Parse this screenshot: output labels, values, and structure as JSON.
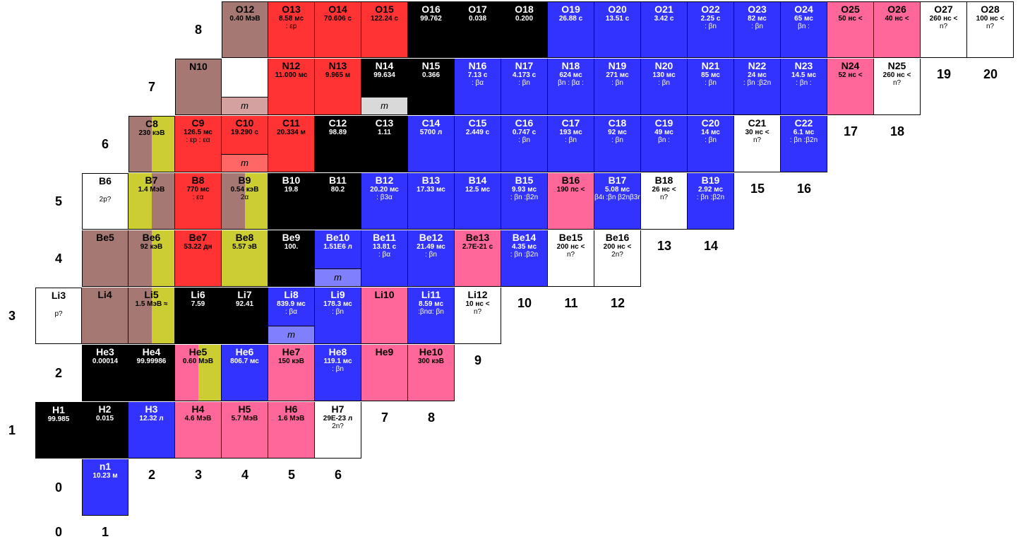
{
  "colors": {
    "stable": "#000000",
    "beta_minus": "#3333ff",
    "beta_plus": "#ff3333",
    "alpha": "#cccc33",
    "proton": "#a67873",
    "unbound": "#ff6699",
    "unknown": "#ffffff",
    "isomer_blue": "#8080ff",
    "isomer_red": "#ff6666",
    "isomer_pink": "#d4a0a0",
    "isomer_gray": "#d9d9d9"
  },
  "z_labels": [
    {
      "text": "0",
      "z": 0
    },
    {
      "text": "1",
      "z": 1
    },
    {
      "text": "2",
      "z": 2
    },
    {
      "text": "3",
      "z": 3
    },
    {
      "text": "4",
      "z": 4
    },
    {
      "text": "5",
      "z": 5
    },
    {
      "text": "6",
      "z": 6
    },
    {
      "text": "7",
      "z": 7
    },
    {
      "text": "8",
      "z": 8
    }
  ],
  "n_labels": [
    {
      "text": "0",
      "n": 0,
      "z": -1
    },
    {
      "text": "1",
      "n": 1,
      "z": -1
    },
    {
      "text": "2",
      "n": 2,
      "z": 0
    },
    {
      "text": "3",
      "n": 3,
      "z": 0
    },
    {
      "text": "4",
      "n": 4,
      "z": 0
    },
    {
      "text": "5",
      "n": 5,
      "z": 0
    },
    {
      "text": "6",
      "n": 6,
      "z": 0
    },
    {
      "text": "7",
      "n": 7,
      "z": 1
    },
    {
      "text": "8",
      "n": 8,
      "z": 1
    },
    {
      "text": "9",
      "n": 9,
      "z": 2
    },
    {
      "text": "10",
      "n": 10,
      "z": 3
    },
    {
      "text": "11",
      "n": 11,
      "z": 3
    },
    {
      "text": "12",
      "n": 12,
      "z": 3
    },
    {
      "text": "13",
      "n": 13,
      "z": 4
    },
    {
      "text": "14",
      "n": 14,
      "z": 4
    },
    {
      "text": "15",
      "n": 15,
      "z": 5
    },
    {
      "text": "16",
      "n": 16,
      "z": 5
    },
    {
      "text": "17",
      "n": 17,
      "z": 6
    },
    {
      "text": "18",
      "n": 18,
      "z": 6
    },
    {
      "text": "19",
      "n": 19,
      "z": 7
    },
    {
      "text": "20",
      "n": 20,
      "z": 7
    }
  ],
  "nuclides": [
    {
      "z": 0,
      "n": 1,
      "name": "n1",
      "v1": "10.23 м",
      "v2": "",
      "fill": "beta_minus"
    },
    {
      "z": 1,
      "n": 0,
      "name": "H1",
      "v1": "99.985",
      "v2": "",
      "fill": "stable"
    },
    {
      "z": 1,
      "n": 1,
      "name": "H2",
      "v1": "0.015",
      "v2": "",
      "fill": "stable"
    },
    {
      "z": 1,
      "n": 2,
      "name": "H3",
      "v1": "12.32 л",
      "v2": "",
      "fill": "beta_minus"
    },
    {
      "z": 1,
      "n": 3,
      "name": "H4",
      "v1": "4.6 МэВ",
      "v2": "",
      "fill": "unbound"
    },
    {
      "z": 1,
      "n": 4,
      "name": "H5",
      "v1": "5.7 МэВ",
      "v2": "",
      "fill": "unbound"
    },
    {
      "z": 1,
      "n": 5,
      "name": "H6",
      "v1": "1.6 МэВ",
      "v2": "",
      "fill": "unbound"
    },
    {
      "z": 1,
      "n": 6,
      "name": "H7",
      "v1": "29E-23 л",
      "v2": "2n?",
      "fill": "unknown"
    },
    {
      "z": 2,
      "n": 1,
      "name": "He3",
      "v1": "0.00014",
      "v2": "",
      "fill": "stable"
    },
    {
      "z": 2,
      "n": 2,
      "name": "He4",
      "v1": "99.99986",
      "v2": "",
      "fill": "stable"
    },
    {
      "z": 2,
      "n": 3,
      "name": "He5",
      "v1": "0.60 МэВ",
      "v2": "",
      "fill": "unbound",
      "split": "alpha"
    },
    {
      "z": 2,
      "n": 4,
      "name": "He6",
      "v1": "806.7 мс",
      "v2": "",
      "fill": "beta_minus"
    },
    {
      "z": 2,
      "n": 5,
      "name": "He7",
      "v1": "150 кэВ",
      "v2": "",
      "fill": "unbound"
    },
    {
      "z": 2,
      "n": 6,
      "name": "He8",
      "v1": "119.1 мс",
      "v2": ":   βn",
      "fill": "beta_minus"
    },
    {
      "z": 2,
      "n": 7,
      "name": "He9",
      "v1": "",
      "v2": "",
      "fill": "unbound"
    },
    {
      "z": 2,
      "n": 8,
      "name": "He10",
      "v1": "300 кэВ",
      "v2": "",
      "fill": "unbound"
    },
    {
      "z": 3,
      "n": 0,
      "name": "Li3",
      "v1": "",
      "v2": "p?",
      "fill": "unknown"
    },
    {
      "z": 3,
      "n": 1,
      "name": "Li4",
      "v1": "",
      "v2": "",
      "fill": "proton"
    },
    {
      "z": 3,
      "n": 2,
      "name": "Li5",
      "v1": "1.5 МэВ ≈",
      "v2": "",
      "fill": "proton",
      "split": "alpha"
    },
    {
      "z": 3,
      "n": 3,
      "name": "Li6",
      "v1": "7.59",
      "v2": "",
      "fill": "stable"
    },
    {
      "z": 3,
      "n": 4,
      "name": "Li7",
      "v1": "92.41",
      "v2": "",
      "fill": "stable"
    },
    {
      "z": 3,
      "n": 5,
      "name": "Li8",
      "v1": "839.9 мс",
      "v2": ":   βα",
      "fill": "beta_minus",
      "isomer": "m",
      "iso_fill": "isomer_blue"
    },
    {
      "z": 3,
      "n": 6,
      "name": "Li9",
      "v1": "178.3 мс",
      "v2": ":   βn",
      "fill": "beta_minus"
    },
    {
      "z": 3,
      "n": 7,
      "name": "Li10",
      "v1": "",
      "v2": "",
      "fill": "unbound"
    },
    {
      "z": 3,
      "n": 8,
      "name": "Li11",
      "v1": "8.59 мс",
      "v2": ":βnα: βn",
      "fill": "beta_minus"
    },
    {
      "z": 3,
      "n": 9,
      "name": "Li12",
      "v1": "10 нс <",
      "v2": "n?",
      "fill": "unknown"
    },
    {
      "z": 4,
      "n": 1,
      "name": "Be5",
      "v1": "",
      "v2": "",
      "fill": "proton"
    },
    {
      "z": 4,
      "n": 2,
      "name": "Be6",
      "v1": "92 кэВ",
      "v2": "",
      "fill": "proton",
      "split": "alpha"
    },
    {
      "z": 4,
      "n": 3,
      "name": "Be7",
      "v1": "53.22 дн",
      "v2": "",
      "fill": "beta_plus"
    },
    {
      "z": 4,
      "n": 4,
      "name": "Be8",
      "v1": "5.57 эВ",
      "v2": "",
      "fill": "alpha"
    },
    {
      "z": 4,
      "n": 5,
      "name": "Be9",
      "v1": "100.",
      "v2": "",
      "fill": "stable"
    },
    {
      "z": 4,
      "n": 6,
      "name": "Be10",
      "v1": "1.51E6 л",
      "v2": "",
      "fill": "beta_minus",
      "isomer": "m",
      "iso_fill": "isomer_blue"
    },
    {
      "z": 4,
      "n": 7,
      "name": "Be11",
      "v1": "13.81 с",
      "v2": ":   βα",
      "fill": "beta_minus"
    },
    {
      "z": 4,
      "n": 8,
      "name": "Be12",
      "v1": "21.49 мс",
      "v2": ":   βn",
      "fill": "beta_minus"
    },
    {
      "z": 4,
      "n": 9,
      "name": "Be13",
      "v1": "2.7E-21 с",
      "v2": "",
      "fill": "unbound"
    },
    {
      "z": 4,
      "n": 10,
      "name": "Be14",
      "v1": "4.35 мс",
      "v2": ": βn :β2n",
      "fill": "beta_minus"
    },
    {
      "z": 4,
      "n": 11,
      "name": "Be15",
      "v1": "200 нс <",
      "v2": "n?",
      "fill": "unknown"
    },
    {
      "z": 4,
      "n": 12,
      "name": "Be16",
      "v1": "200 нс <",
      "v2": "2n?",
      "fill": "unknown"
    },
    {
      "z": 5,
      "n": 1,
      "name": "B6",
      "v1": "",
      "v2": "2p?",
      "fill": "unknown"
    },
    {
      "z": 5,
      "n": 2,
      "name": "B7",
      "v1": "1.4 МэВ",
      "v2": "",
      "fill": "alpha",
      "split": "proton"
    },
    {
      "z": 5,
      "n": 3,
      "name": "B8",
      "v1": "770 мс",
      "v2": ":   εα",
      "fill": "beta_plus"
    },
    {
      "z": 5,
      "n": 4,
      "name": "B9",
      "v1": "0.54 кэВ",
      "v2": "2α",
      "fill": "proton",
      "split": "alpha"
    },
    {
      "z": 5,
      "n": 5,
      "name": "B10",
      "v1": "19.8",
      "v2": "",
      "fill": "stable"
    },
    {
      "z": 5,
      "n": 6,
      "name": "B11",
      "v1": "80.2",
      "v2": "",
      "fill": "stable"
    },
    {
      "z": 5,
      "n": 7,
      "name": "B12",
      "v1": "20.20 мс",
      "v2": ":   β3α",
      "fill": "beta_minus"
    },
    {
      "z": 5,
      "n": 8,
      "name": "B13",
      "v1": "17.33 мс",
      "v2": "",
      "fill": "beta_minus"
    },
    {
      "z": 5,
      "n": 9,
      "name": "B14",
      "v1": "12.5 мс",
      "v2": "",
      "fill": "beta_minus"
    },
    {
      "z": 5,
      "n": 10,
      "name": "B15",
      "v1": "9.93 мс",
      "v2": ": βn :β2n",
      "fill": "beta_minus"
    },
    {
      "z": 5,
      "n": 11,
      "name": "B16",
      "v1": "190 пс <",
      "v2": "",
      "fill": "unbound"
    },
    {
      "z": 5,
      "n": 12,
      "name": "B17",
      "v1": "5.08 мс",
      "v2": "β4ι :βn β2nβ3n",
      "fill": "beta_minus"
    },
    {
      "z": 5,
      "n": 13,
      "name": "B18",
      "v1": "26 нс <",
      "v2": "n?",
      "fill": "unknown"
    },
    {
      "z": 5,
      "n": 14,
      "name": "B19",
      "v1": "2.92 мс",
      "v2": ": βn :β2n",
      "fill": "beta_minus"
    },
    {
      "z": 6,
      "n": 2,
      "name": "C8",
      "v1": "230 кэВ",
      "v2": "",
      "fill": "proton",
      "split": "alpha"
    },
    {
      "z": 6,
      "n": 3,
      "name": "C9",
      "v1": "126.5 мс",
      "v2": ": εp : εα",
      "fill": "beta_plus"
    },
    {
      "z": 6,
      "n": 4,
      "name": "C10",
      "v1": "19.290 с",
      "v2": "",
      "fill": "beta_plus",
      "isomer": "m",
      "iso_fill": "isomer_red"
    },
    {
      "z": 6,
      "n": 5,
      "name": "C11",
      "v1": "20.334 м",
      "v2": "",
      "fill": "beta_plus"
    },
    {
      "z": 6,
      "n": 6,
      "name": "C12",
      "v1": "98.89",
      "v2": "",
      "fill": "stable"
    },
    {
      "z": 6,
      "n": 7,
      "name": "C13",
      "v1": "1.11",
      "v2": "",
      "fill": "stable"
    },
    {
      "z": 6,
      "n": 8,
      "name": "C14",
      "v1": "5700 л",
      "v2": "",
      "fill": "beta_minus"
    },
    {
      "z": 6,
      "n": 9,
      "name": "C15",
      "v1": "2.449 с",
      "v2": "",
      "fill": "beta_minus"
    },
    {
      "z": 6,
      "n": 10,
      "name": "C16",
      "v1": "0.747 с",
      "v2": ":   βn",
      "fill": "beta_minus"
    },
    {
      "z": 6,
      "n": 11,
      "name": "C17",
      "v1": "193 мс",
      "v2": ":   βn",
      "fill": "beta_minus"
    },
    {
      "z": 6,
      "n": 12,
      "name": "C18",
      "v1": "92 мс",
      "v2": ":   βn",
      "fill": "beta_minus"
    },
    {
      "z": 6,
      "n": 13,
      "name": "C19",
      "v1": "49 мс",
      "v2": "βn  :",
      "fill": "beta_minus"
    },
    {
      "z": 6,
      "n": 14,
      "name": "C20",
      "v1": "14 мс",
      "v2": ":   βn",
      "fill": "beta_minus"
    },
    {
      "z": 6,
      "n": 15,
      "name": "C21",
      "v1": "30 нс <",
      "v2": "n?",
      "fill": "unknown"
    },
    {
      "z": 6,
      "n": 16,
      "name": "C22",
      "v1": "6.1 мс",
      "v2": ": βn :β2n",
      "fill": "beta_minus"
    },
    {
      "z": 7,
      "n": 3,
      "name": "N10",
      "v1": "",
      "v2": "",
      "fill": "proton"
    },
    {
      "z": 7,
      "n": 4,
      "name": "",
      "v1": "",
      "v2": "",
      "fill": "unknown",
      "isomer": "m",
      "iso_fill": "isomer_pink"
    },
    {
      "z": 7,
      "n": 5,
      "name": "N12",
      "v1": "11.000 мс",
      "v2": "",
      "fill": "beta_plus"
    },
    {
      "z": 7,
      "n": 6,
      "name": "N13",
      "v1": "9.965 м",
      "v2": "",
      "fill": "beta_plus"
    },
    {
      "z": 7,
      "n": 7,
      "name": "N14",
      "v1": "99.634",
      "v2": "",
      "fill": "stable",
      "isomer": "m",
      "iso_fill": "isomer_gray"
    },
    {
      "z": 7,
      "n": 8,
      "name": "N15",
      "v1": "0.366",
      "v2": "",
      "fill": "stable"
    },
    {
      "z": 7,
      "n": 9,
      "name": "N16",
      "v1": "7.13 с",
      "v2": ":   βα",
      "fill": "beta_minus"
    },
    {
      "z": 7,
      "n": 10,
      "name": "N17",
      "v1": "4.173 с",
      "v2": ":   βn",
      "fill": "beta_minus"
    },
    {
      "z": 7,
      "n": 11,
      "name": "N18",
      "v1": "624 мс",
      "v2": "βn : βα :",
      "fill": "beta_minus"
    },
    {
      "z": 7,
      "n": 12,
      "name": "N19",
      "v1": "271 мс",
      "v2": ":   βn",
      "fill": "beta_minus"
    },
    {
      "z": 7,
      "n": 13,
      "name": "N20",
      "v1": "130 мс",
      "v2": ":   βn",
      "fill": "beta_minus"
    },
    {
      "z": 7,
      "n": 14,
      "name": "N21",
      "v1": "85 мс",
      "v2": ":   βn",
      "fill": "beta_minus"
    },
    {
      "z": 7,
      "n": 15,
      "name": "N22",
      "v1": "24 мс",
      "v2": ": βn :β2n",
      "fill": "beta_minus"
    },
    {
      "z": 7,
      "n": 16,
      "name": "N23",
      "v1": "14.5 мс",
      "v2": ": βn :",
      "fill": "beta_minus"
    },
    {
      "z": 7,
      "n": 17,
      "name": "N24",
      "v1": "52 нс <",
      "v2": "",
      "fill": "unbound"
    },
    {
      "z": 7,
      "n": 18,
      "name": "N25",
      "v1": "260 нс <",
      "v2": "n?",
      "fill": "unknown"
    },
    {
      "z": 8,
      "n": 4,
      "name": "O12",
      "v1": "0.40 МэВ",
      "v2": "",
      "fill": "proton"
    },
    {
      "z": 8,
      "n": 5,
      "name": "O13",
      "v1": "8.58 мс",
      "v2": ":   εp",
      "fill": "beta_plus"
    },
    {
      "z": 8,
      "n": 6,
      "name": "O14",
      "v1": "70.606 с",
      "v2": "",
      "fill": "beta_plus"
    },
    {
      "z": 8,
      "n": 7,
      "name": "O15",
      "v1": "122.24 с",
      "v2": "",
      "fill": "beta_plus"
    },
    {
      "z": 8,
      "n": 8,
      "name": "O16",
      "v1": "99.762",
      "v2": "",
      "fill": "stable"
    },
    {
      "z": 8,
      "n": 9,
      "name": "O17",
      "v1": "0.038",
      "v2": "",
      "fill": "stable"
    },
    {
      "z": 8,
      "n": 10,
      "name": "O18",
      "v1": "0.200",
      "v2": "",
      "fill": "stable"
    },
    {
      "z": 8,
      "n": 11,
      "name": "O19",
      "v1": "26.88 с",
      "v2": "",
      "fill": "beta_minus"
    },
    {
      "z": 8,
      "n": 12,
      "name": "O20",
      "v1": "13.51 с",
      "v2": "",
      "fill": "beta_minus"
    },
    {
      "z": 8,
      "n": 13,
      "name": "O21",
      "v1": "3.42 с",
      "v2": "",
      "fill": "beta_minus"
    },
    {
      "z": 8,
      "n": 14,
      "name": "O22",
      "v1": "2.25 с",
      "v2": ":   βn",
      "fill": "beta_minus"
    },
    {
      "z": 8,
      "n": 15,
      "name": "O23",
      "v1": "82 мс",
      "v2": ":   βn",
      "fill": "beta_minus"
    },
    {
      "z": 8,
      "n": 16,
      "name": "O24",
      "v1": "65 мс",
      "v2": "βn  :",
      "fill": "beta_minus"
    },
    {
      "z": 8,
      "n": 17,
      "name": "O25",
      "v1": "50 нс <",
      "v2": "",
      "fill": "unbound"
    },
    {
      "z": 8,
      "n": 18,
      "name": "O26",
      "v1": "40 нс <",
      "v2": "",
      "fill": "unbound"
    },
    {
      "z": 8,
      "n": 19,
      "name": "O27",
      "v1": "260 нс <",
      "v2": "n?",
      "fill": "unknown"
    },
    {
      "z": 8,
      "n": 20,
      "name": "O28",
      "v1": "100 нс <",
      "v2": "n?",
      "fill": "unknown"
    }
  ]
}
